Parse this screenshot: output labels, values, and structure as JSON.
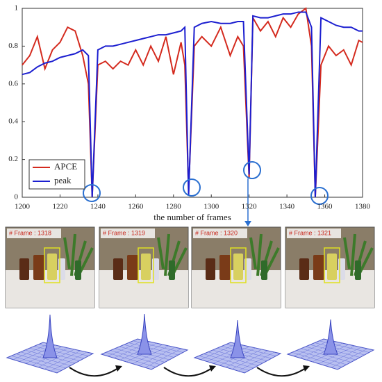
{
  "chart_data": {
    "type": "line",
    "xlabel": "the number of frames",
    "x": [
      1200,
      1204,
      1208,
      1212,
      1216,
      1220,
      1224,
      1228,
      1232,
      1235,
      1237,
      1240,
      1244,
      1248,
      1252,
      1256,
      1260,
      1264,
      1268,
      1272,
      1276,
      1280,
      1284,
      1286,
      1288,
      1291,
      1295,
      1300,
      1305,
      1310,
      1314,
      1317,
      1320,
      1322,
      1326,
      1330,
      1334,
      1338,
      1342,
      1346,
      1350,
      1353,
      1355,
      1358,
      1362,
      1366,
      1370,
      1374,
      1378,
      1380
    ],
    "series": [
      {
        "name": "APCE",
        "color": "#d42a1e",
        "values": [
          0.7,
          0.75,
          0.85,
          0.68,
          0.78,
          0.82,
          0.9,
          0.88,
          0.75,
          0.6,
          0.0,
          0.7,
          0.72,
          0.68,
          0.72,
          0.7,
          0.78,
          0.7,
          0.8,
          0.72,
          0.85,
          0.65,
          0.82,
          0.7,
          0.03,
          0.8,
          0.85,
          0.8,
          0.9,
          0.75,
          0.85,
          0.8,
          0.1,
          0.95,
          0.88,
          0.93,
          0.85,
          0.95,
          0.9,
          0.97,
          1.0,
          0.8,
          0.0,
          0.7,
          0.8,
          0.75,
          0.78,
          0.7,
          0.83,
          0.82
        ]
      },
      {
        "name": "peak",
        "color": "#1c1fd0",
        "values": [
          0.65,
          0.66,
          0.69,
          0.71,
          0.72,
          0.74,
          0.75,
          0.76,
          0.78,
          0.75,
          0.0,
          0.78,
          0.8,
          0.8,
          0.81,
          0.82,
          0.83,
          0.84,
          0.85,
          0.86,
          0.86,
          0.87,
          0.88,
          0.9,
          0.01,
          0.9,
          0.92,
          0.93,
          0.92,
          0.92,
          0.93,
          0.93,
          0.12,
          0.96,
          0.95,
          0.95,
          0.96,
          0.97,
          0.97,
          0.98,
          0.98,
          0.9,
          0.0,
          0.95,
          0.93,
          0.91,
          0.9,
          0.9,
          0.88,
          0.88
        ]
      }
    ],
    "xlim": [
      1200,
      1380
    ],
    "xticks": [
      1200,
      1220,
      1240,
      1260,
      1280,
      1300,
      1320,
      1340,
      1360,
      1380
    ],
    "ylim": [
      0,
      1
    ],
    "yticks": [
      0,
      0.2,
      0.4,
      0.6,
      0.8,
      1
    ],
    "grid": false,
    "legend": "lower left"
  },
  "frames": [
    {
      "label": "# Frame : 1318"
    },
    {
      "label": "# Frame : 1319"
    },
    {
      "label": "# Frame : 1320"
    },
    {
      "label": "# Frame : 1321"
    }
  ]
}
